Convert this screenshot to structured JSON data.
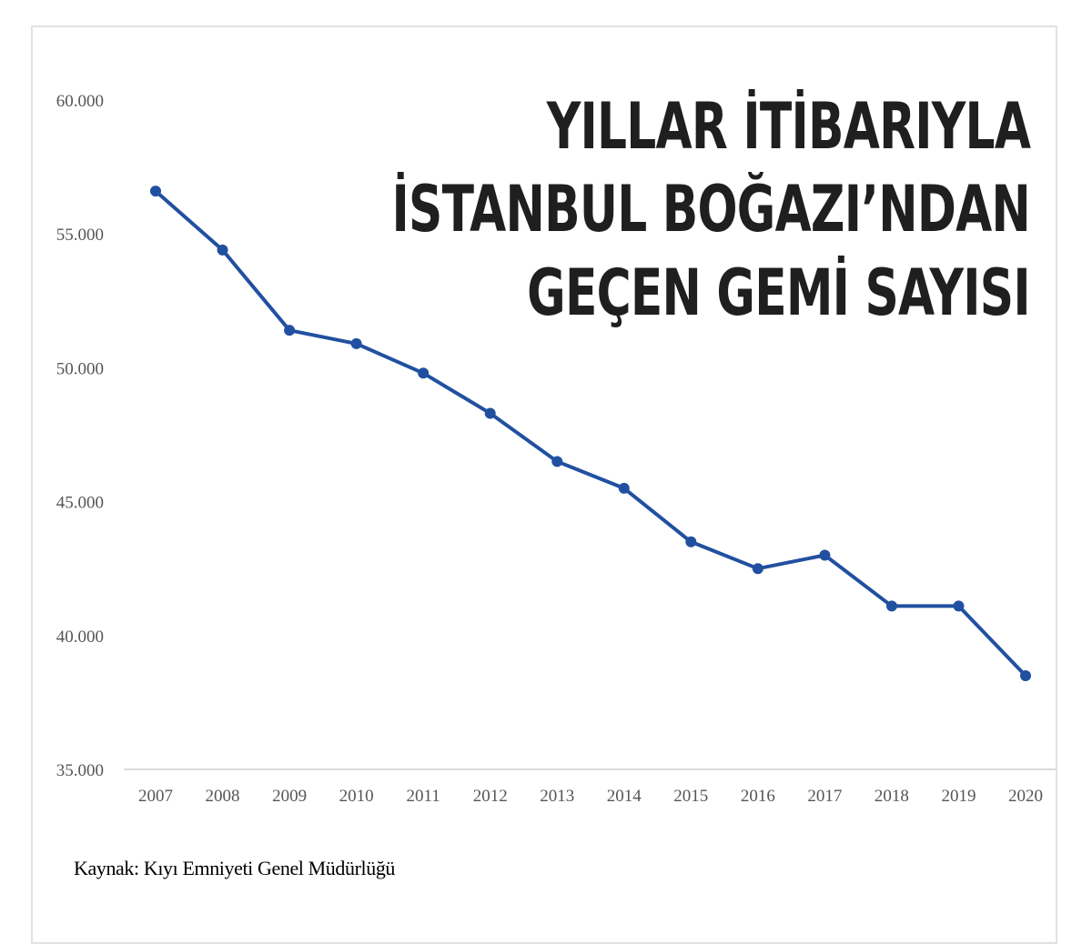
{
  "title_lines": [
    "YILLAR İTİBARIYLA",
    "İSTANBUL BOĞAZI’NDAN",
    "GEÇEN GEMİ SAYISI"
  ],
  "source": "Kaynak: Kıyı  Emniyeti  Genel Müdürlüğü",
  "colors": {
    "line": "#2150a0",
    "axis": "#cfcfcf",
    "title": "#1f1f1f"
  },
  "chart_data": {
    "type": "line",
    "title": "YILLAR İTİBARIYLA İSTANBUL BOĞAZI’NDAN GEÇEN GEMİ SAYISI",
    "xlabel": "",
    "ylabel": "",
    "categories": [
      "2007",
      "2008",
      "2009",
      "2010",
      "2011",
      "2012",
      "2013",
      "2014",
      "2015",
      "2016",
      "2017",
      "2018",
      "2019",
      "2020"
    ],
    "series": [
      {
        "values": [
          56600,
          54400,
          51400,
          50900,
          49800,
          48300,
          46500,
          45500,
          43500,
          42500,
          43000,
          41100,
          41100,
          38500
        ]
      }
    ],
    "ylim": [
      35000,
      60000
    ],
    "yticks": [
      35000,
      40000,
      45000,
      50000,
      55000,
      60000
    ],
    "ytick_labels": [
      "35.000",
      "40.000",
      "45.000",
      "50.000",
      "55.000",
      "60.000"
    ],
    "grid": false,
    "legend": "none"
  }
}
